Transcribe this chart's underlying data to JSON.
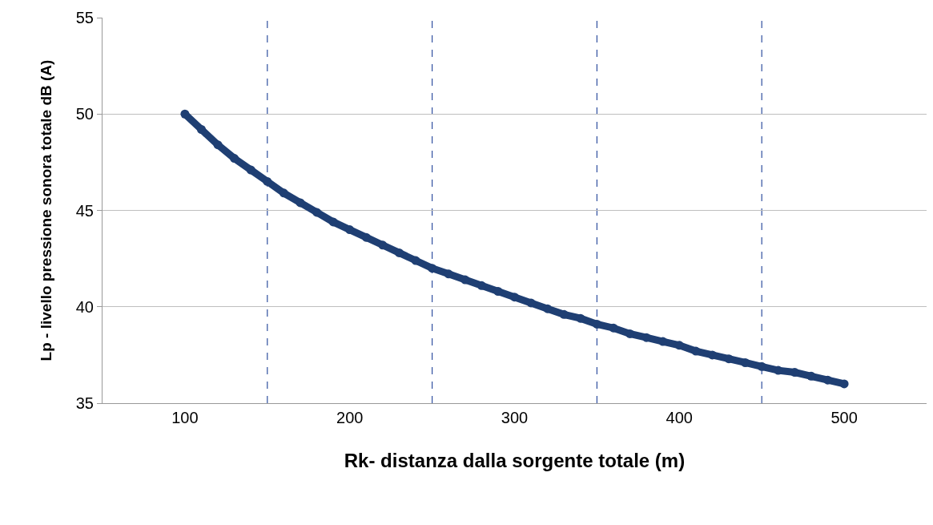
{
  "chart_data": {
    "type": "line",
    "xlabel": "Rk- distanza dalla sorgente totale (m)",
    "ylabel": "Lp - livello pressione sonora totale dB (A)",
    "x": [
      100,
      110,
      120,
      130,
      140,
      150,
      160,
      170,
      180,
      190,
      200,
      210,
      220,
      230,
      240,
      250,
      260,
      270,
      280,
      290,
      300,
      310,
      320,
      330,
      340,
      350,
      360,
      370,
      380,
      390,
      400,
      410,
      420,
      430,
      440,
      450,
      460,
      470,
      480,
      490,
      500
    ],
    "series": [
      {
        "color": "#1f3f73",
        "values": [
          50.0,
          49.2,
          48.4,
          47.7,
          47.1,
          46.5,
          45.9,
          45.4,
          44.9,
          44.4,
          44.0,
          43.6,
          43.2,
          42.8,
          42.4,
          42.0,
          41.7,
          41.4,
          41.1,
          40.8,
          40.5,
          40.2,
          39.9,
          39.6,
          39.4,
          39.1,
          38.9,
          38.6,
          38.4,
          38.2,
          38.0,
          37.7,
          37.5,
          37.3,
          37.1,
          36.9,
          36.7,
          36.6,
          36.4,
          36.2,
          36.0
        ]
      }
    ],
    "xlim": [
      50,
      550
    ],
    "xticks": [
      100,
      200,
      300,
      400,
      500
    ],
    "ylim": [
      35,
      55
    ],
    "yticks": [
      35,
      40,
      45,
      50,
      55
    ],
    "grid": "y",
    "marker": "circle",
    "ref_lines": [
      {
        "axis": "x",
        "value": 150,
        "color": "#2f4f9f",
        "line_style": "dashed"
      },
      {
        "axis": "x",
        "value": 250,
        "color": "#2f4f9f",
        "line_style": "dashed"
      },
      {
        "axis": "x",
        "value": 350,
        "color": "#2f4f9f",
        "line_style": "dashed"
      },
      {
        "axis": "x",
        "value": 450,
        "color": "#2f4f9f",
        "line_style": "dashed"
      }
    ]
  }
}
